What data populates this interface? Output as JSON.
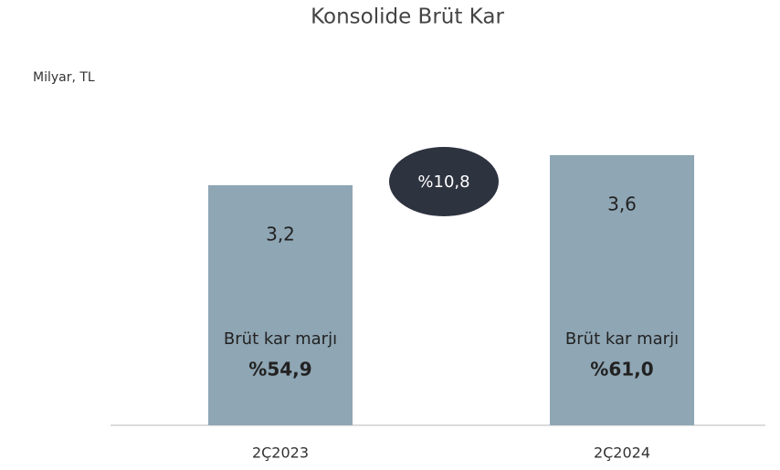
{
  "chart_data": {
    "type": "bar",
    "title": "Konsolide Brüt Kar",
    "subtitle": "Milyar, TL",
    "categories": [
      "2Ç2023",
      "2Ç2024"
    ],
    "values": [
      3.2,
      3.6
    ],
    "value_labels": [
      "3,2",
      "3,6"
    ],
    "color": "#8fa6b4",
    "margins": [
      {
        "label": "Brüt kar marjı",
        "value": "%54,9"
      },
      {
        "label": "Brüt kar marjı",
        "value": "%61,0"
      }
    ],
    "growth": "%10,8"
  }
}
